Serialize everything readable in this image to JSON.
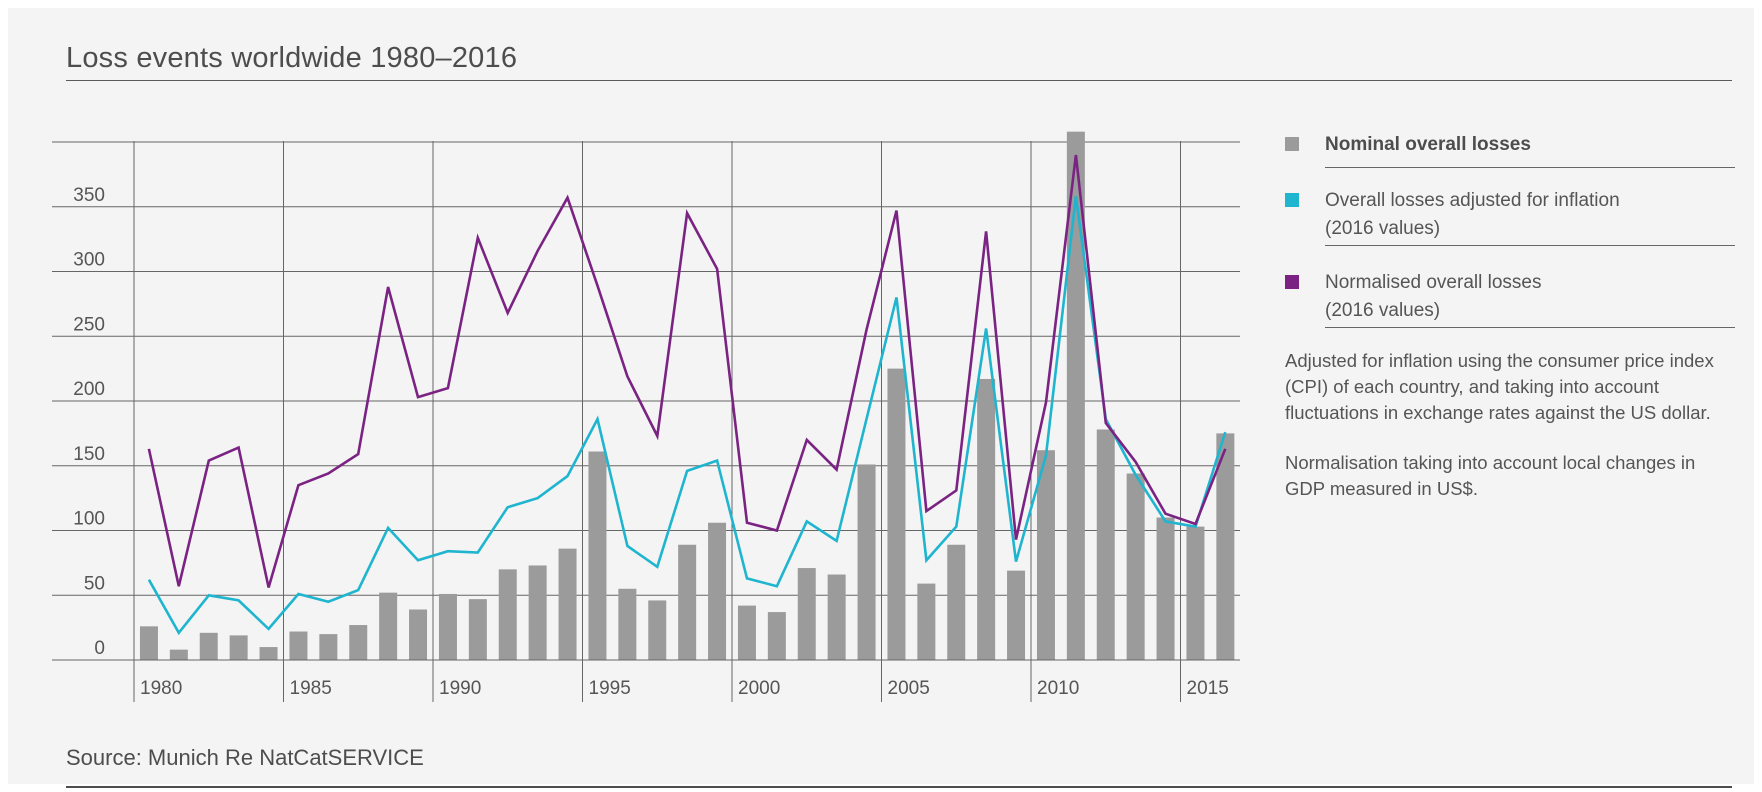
{
  "title": "Loss events worldwide 1980–2016",
  "source": "Source: Munich Re NatCatSERVICE",
  "colors": {
    "bars": "#9b9b9b",
    "inflation": "#1fb5cf",
    "normalised": "#7a2383",
    "grid": "#666666",
    "text": "#555555"
  },
  "legend": {
    "nominal": "Nominal overall losses",
    "inflation": "Overall losses adjusted for inflation",
    "inflation_sub": "(2016 values)",
    "normalised": "Normalised overall losses",
    "normalised_sub": "(2016 values)"
  },
  "notes": {
    "cpi": "Adjusted for inflation using the consumer price index (CPI) of each country, and taking into account fluctuations in exchange rates against the US dollar.",
    "gdp": "Normalisation taking into account local changes in GDP measured in US$."
  },
  "chart_data": {
    "type": "bar",
    "title": "Loss events worldwide 1980–2016",
    "xlabel": "",
    "ylabel": "",
    "ylim": [
      0,
      400
    ],
    "y_ticks": [
      0,
      50,
      100,
      150,
      200,
      250,
      300,
      350
    ],
    "x_tick_labels": [
      "1980",
      "1985",
      "1990",
      "1995",
      "2000",
      "2005",
      "2010",
      "2015"
    ],
    "grid": true,
    "legend_position": "right",
    "categories": [
      1980,
      1981,
      1982,
      1983,
      1984,
      1985,
      1986,
      1987,
      1988,
      1989,
      1990,
      1991,
      1992,
      1993,
      1994,
      1995,
      1996,
      1997,
      1998,
      1999,
      2000,
      2001,
      2002,
      2003,
      2004,
      2005,
      2006,
      2007,
      2008,
      2009,
      2010,
      2011,
      2012,
      2013,
      2014,
      2015,
      2016
    ],
    "series": [
      {
        "name": "Nominal overall losses",
        "type": "bar",
        "values": [
          26,
          8,
          21,
          19,
          10,
          22,
          20,
          27,
          52,
          39,
          51,
          47,
          70,
          73,
          86,
          161,
          55,
          46,
          89,
          106,
          42,
          37,
          71,
          66,
          151,
          225,
          59,
          89,
          217,
          69,
          162,
          408,
          178,
          144,
          110,
          103,
          175
        ]
      },
      {
        "name": "Overall losses adjusted for inflation",
        "type": "line",
        "values": [
          62,
          21,
          50,
          46,
          24,
          51,
          45,
          54,
          102,
          77,
          84,
          83,
          118,
          125,
          142,
          186,
          88,
          72,
          146,
          154,
          63,
          57,
          107,
          92,
          186,
          280,
          77,
          103,
          256,
          76,
          158,
          358,
          186,
          143,
          107,
          103,
          176
        ]
      },
      {
        "name": "Normalised overall losses",
        "type": "line",
        "values": [
          163,
          57,
          154,
          164,
          56,
          135,
          144,
          159,
          288,
          203,
          210,
          326,
          268,
          316,
          357,
          289,
          219,
          173,
          345,
          302,
          106,
          100,
          170,
          147,
          255,
          347,
          115,
          131,
          331,
          93,
          199,
          390,
          183,
          153,
          113,
          105,
          163
        ]
      }
    ]
  }
}
